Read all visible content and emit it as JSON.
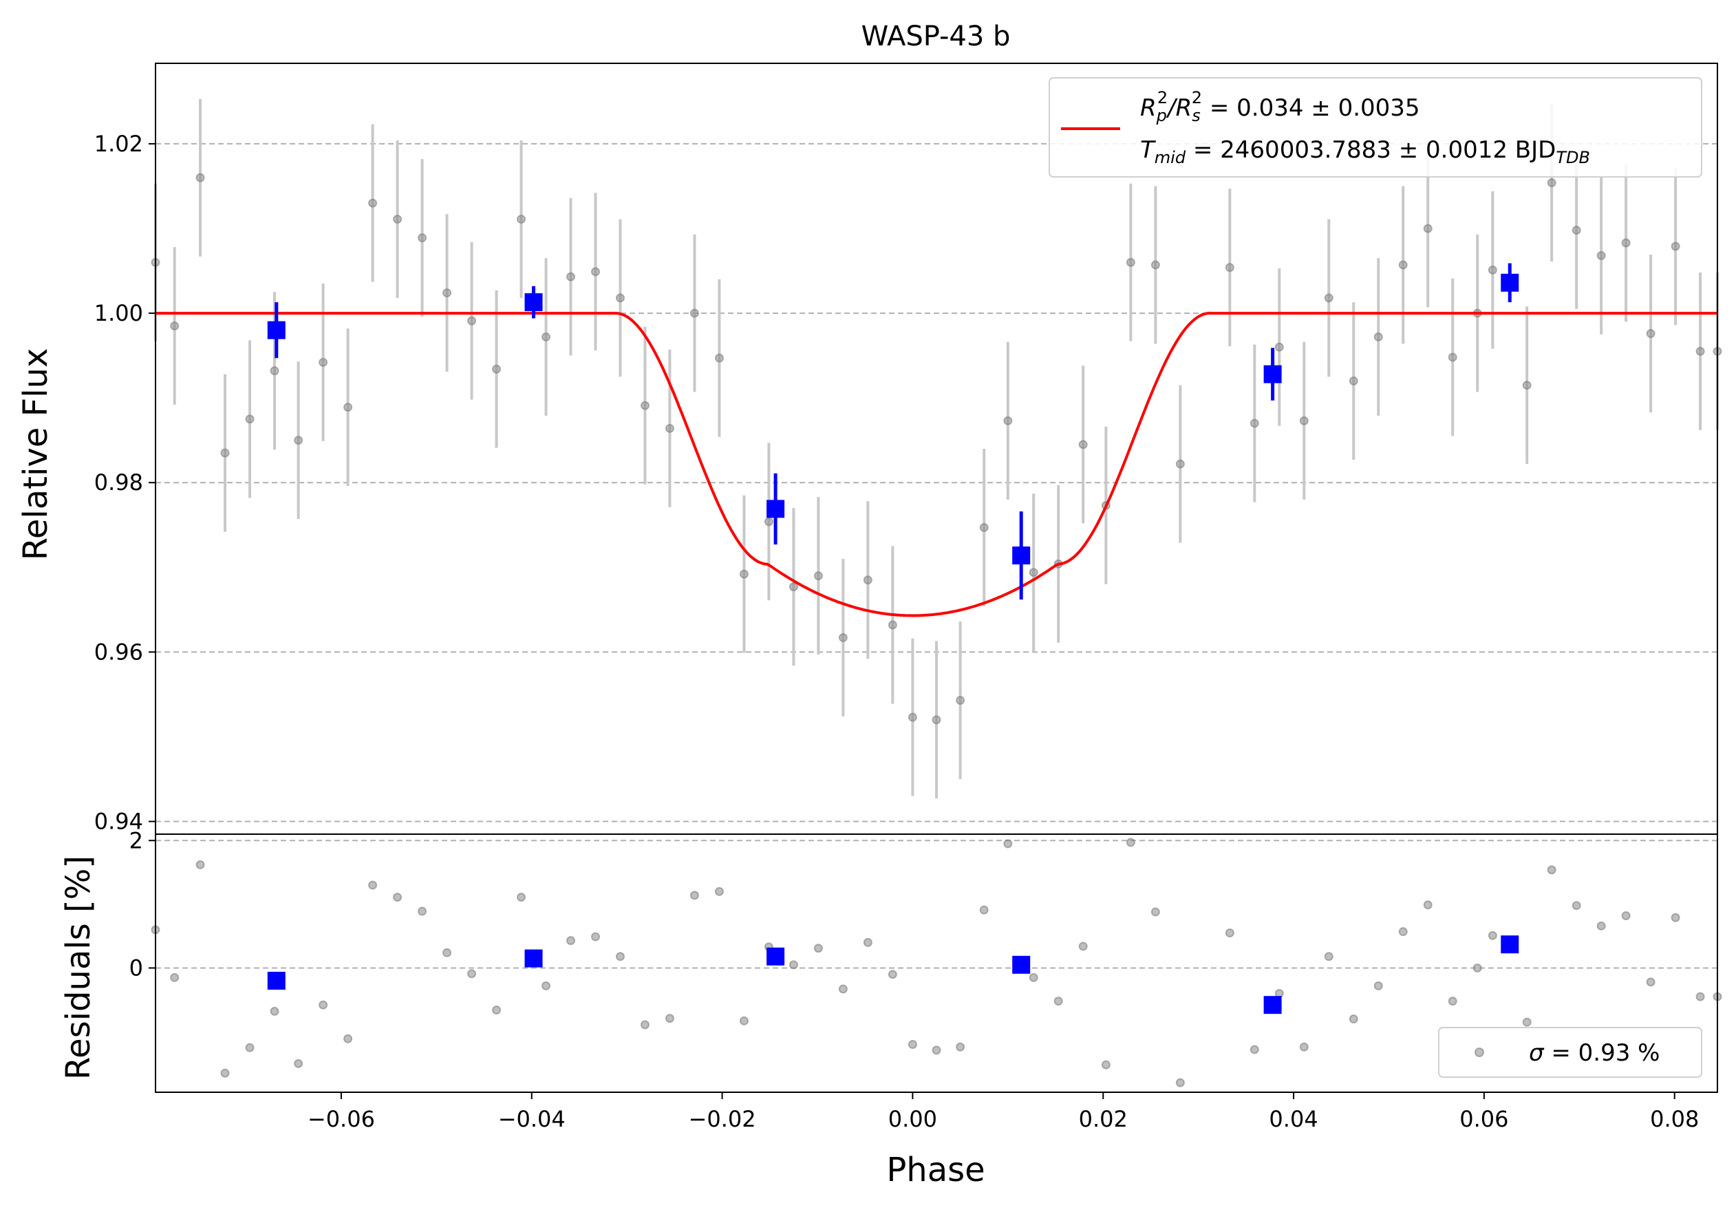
{
  "chart_data": {
    "type": "scatter",
    "title": "WASP-43 b",
    "xlabel": "Phase",
    "xlim": [
      -0.0795,
      0.0845
    ],
    "xticks": [
      -0.06,
      -0.04,
      -0.02,
      0.0,
      0.02,
      0.04,
      0.06,
      0.08
    ],
    "xtick_labels": [
      "−0.06",
      "−0.04",
      "−0.02",
      "0.00",
      "0.02",
      "0.04",
      "0.06",
      "0.08"
    ],
    "panels": {
      "top": {
        "ylabel": "Relative Flux",
        "ylim": [
          0.9385,
          1.0295
        ],
        "yticks": [
          0.94,
          0.96,
          0.98,
          1.0,
          1.02
        ],
        "ytick_labels": [
          "0.94",
          "0.96",
          "0.98",
          "1.00",
          "1.02"
        ],
        "grid": "horizontal dashed"
      },
      "bottom": {
        "ylabel": "Residuals [%]",
        "ylim": [
          -1.95,
          2.1
        ],
        "yticks": [
          0,
          2
        ],
        "ytick_labels": [
          "0",
          "2"
        ],
        "grid": "horizontal dashed"
      }
    },
    "model": {
      "name": "transit model",
      "color": "#ff0000",
      "depth": 0.0357,
      "t_mid_phase": 0.0,
      "half_duration": 0.0312,
      "ingress": 0.016
    },
    "legend_top": {
      "placement": "top-right",
      "line1_sym": "R",
      "line1_sub1": "p",
      "line1_sup": "2",
      "line1_mid": "/R",
      "line1_sub2": "s",
      "line1_sup2": "2",
      "line1_val": " = 0.034 ± 0.0035",
      "line2_sym": "T",
      "line2_sub": "mid",
      "line2_val": " = 2460003.7883 ± 0.0012 BJD",
      "line2_sub2": "TDB"
    },
    "legend_bottom": {
      "placement": "lower-right",
      "label_sym": "σ",
      "label_val": " = 0.93 %"
    },
    "raw_points": {
      "color": "#808080",
      "error": 0.0093,
      "x": [
        -0.0795,
        -0.0775,
        -0.0748,
        -0.0722,
        -0.0696,
        -0.067,
        -0.0645,
        -0.0619,
        -0.0593,
        -0.0567,
        -0.0541,
        -0.0515,
        -0.0489,
        -0.0463,
        -0.0437,
        -0.0411,
        -0.0385,
        -0.0359,
        -0.0333,
        -0.0307,
        -0.0281,
        -0.0255,
        -0.0229,
        -0.0203,
        -0.0177,
        -0.0151,
        -0.0125,
        -0.0099,
        -0.0073,
        -0.0047,
        -0.0021,
        0.0,
        0.0025,
        0.005,
        0.0075,
        0.01,
        0.0127,
        0.0153,
        0.0179,
        0.0203,
        0.0229,
        0.0255,
        0.0281,
        0.0333,
        0.0359,
        0.0385,
        0.0411,
        0.0437,
        0.0463,
        0.0489,
        0.0515,
        0.0541,
        0.0567,
        0.0593,
        0.0609,
        0.0645,
        0.0671,
        0.0697,
        0.0723,
        0.0749,
        0.0775,
        0.0801,
        0.0827,
        0.0845
      ],
      "flux": [
        1.006,
        0.9985,
        1.016,
        0.9835,
        0.9875,
        0.9932,
        0.985,
        0.9942,
        0.9889,
        1.013,
        1.0111,
        1.0089,
        1.0024,
        0.9991,
        0.9934,
        1.0111,
        0.9972,
        1.0043,
        1.0049,
        1.0018,
        0.9891,
        0.9864,
        1.0,
        0.9947,
        0.9692,
        0.9754,
        0.9677,
        0.969,
        0.9617,
        0.9685,
        0.9632,
        0.9523,
        0.952,
        0.9543,
        0.9747,
        0.9873,
        0.9694,
        0.9704,
        0.9845,
        0.9773,
        1.006,
        1.0057,
        0.9822,
        1.0054,
        0.987,
        0.996,
        0.9873,
        1.0018,
        0.992,
        0.9972,
        1.0057,
        1.01,
        0.9948,
        1.0,
        1.0051,
        0.9915,
        1.0154,
        1.0098,
        1.0068,
        1.0083,
        0.9976,
        1.0079,
        0.9955,
        0.9955
      ],
      "residuals": [
        0.6,
        -0.15,
        1.62,
        -1.65,
        -1.25,
        -0.68,
        -1.5,
        -0.58,
        -1.11,
        1.3,
        1.11,
        0.89,
        0.24,
        -0.09,
        -0.66,
        1.11,
        -0.28,
        0.43,
        0.49,
        0.18,
        -0.89,
        -0.79,
        1.14,
        1.2,
        -0.83,
        0.33,
        0.05,
        0.31,
        -0.33,
        0.4,
        -0.1,
        -1.2,
        -1.29,
        -1.24,
        0.91,
        1.95,
        -0.15,
        -0.52,
        0.34,
        -1.52,
        1.97,
        0.88,
        -1.8,
        0.55,
        -1.28,
        -0.4,
        -1.24,
        0.18,
        -0.8,
        -0.28,
        0.57,
        0.99,
        -0.52,
        0.0,
        0.51,
        -0.85,
        1.54,
        0.98,
        0.66,
        0.82,
        -0.22,
        0.79,
        -0.45,
        -0.45
      ]
    },
    "binned_points": {
      "color": "#0000ff",
      "x": [
        -0.0668,
        -0.0398,
        -0.0144,
        0.0114,
        0.0378,
        0.0627
      ],
      "flux": [
        0.998,
        1.0013,
        0.9769,
        0.9714,
        0.9928,
        1.0036
      ],
      "flux_err": [
        0.0033,
        0.0019,
        0.0042,
        0.0052,
        0.0031,
        0.0023
      ],
      "residuals": [
        -0.2,
        0.15,
        0.18,
        0.05,
        -0.58,
        0.37
      ]
    }
  }
}
